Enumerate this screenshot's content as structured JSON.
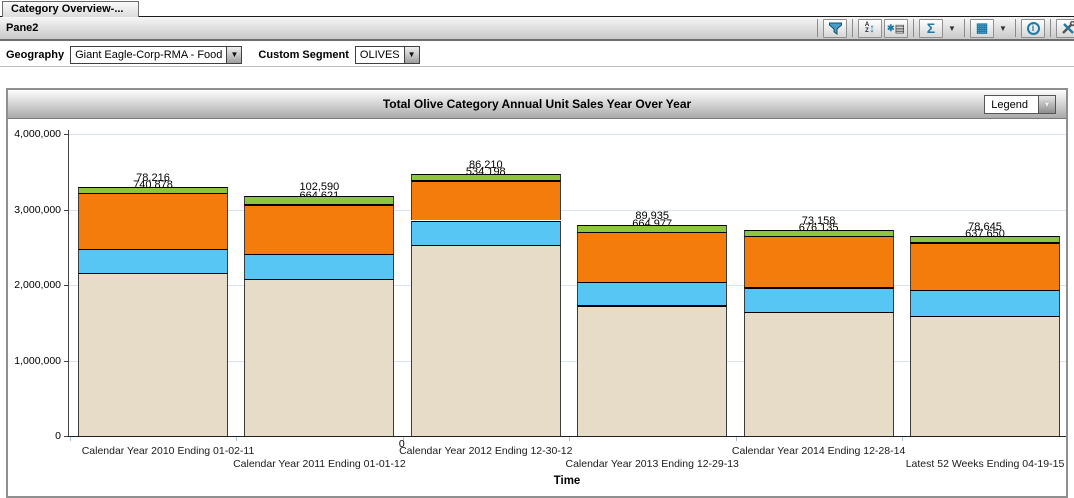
{
  "tab_bar": {
    "active_tab": "Category Overview-..."
  },
  "pane": {
    "title": "Pane2"
  },
  "filters": {
    "geography_label": "Geography",
    "geography_value": "Giant Eagle-Corp-RMA - Food",
    "segment_label": "Custom Segment",
    "segment_value": "OLIVES"
  },
  "legend_button_label": "Legend",
  "colors": {
    "beige": "#E7DCC7",
    "blue": "#58C6F4",
    "orange": "#F47C0D",
    "green": "#8CC63E",
    "toolbar_icon": "#1D7BA8",
    "gridline": "#D9E2EE"
  },
  "chart_data": {
    "type": "bar",
    "stacked": true,
    "title": "Total Olive Category Annual Unit Sales Year Over Year",
    "xlabel": "Time",
    "ylabel": "",
    "ylim": [
      0,
      4000000
    ],
    "ytick_labels": [
      "0",
      "1,000,000",
      "2,000,000",
      "3,000,000",
      "4,000,000"
    ],
    "grid": true,
    "legend_position": "dropdown-collapsed",
    "categories": [
      "Calendar Year 2010 Ending 01-02-11",
      "Calendar Year 2011 Ending 01-01-12",
      "Calendar Year 2012 Ending 12-30-12",
      "Calendar Year 2013 Ending 12-29-13",
      "Calendar Year 2014 Ending 12-28-14",
      "Latest 52 Weeks Ending 04-19-15"
    ],
    "series": [
      {
        "name": "beige-segment",
        "color": "#E7DCC7",
        "values": [
          2166341,
          2083938,
          2535343,
          1738552,
          1639569,
          1594744
        ]
      },
      {
        "name": "blue-segment",
        "color": "#58C6F4",
        "values": [
          311833,
          331506,
          322743,
          307029,
          341131,
          341716
        ]
      },
      {
        "name": "orange-segment",
        "color": "#F47C0D",
        "values": [
          740878,
          664621,
          534198,
          664977,
          676135,
          637650
        ]
      },
      {
        "name": "green-segment",
        "color": "#8CC63E",
        "values": [
          78216,
          102590,
          86210,
          89935,
          73158,
          78645
        ]
      }
    ],
    "thick_black_boundary_series": [
      -1,
      2,
      2,
      0,
      1,
      2
    ],
    "floating_zero_label": "0"
  }
}
